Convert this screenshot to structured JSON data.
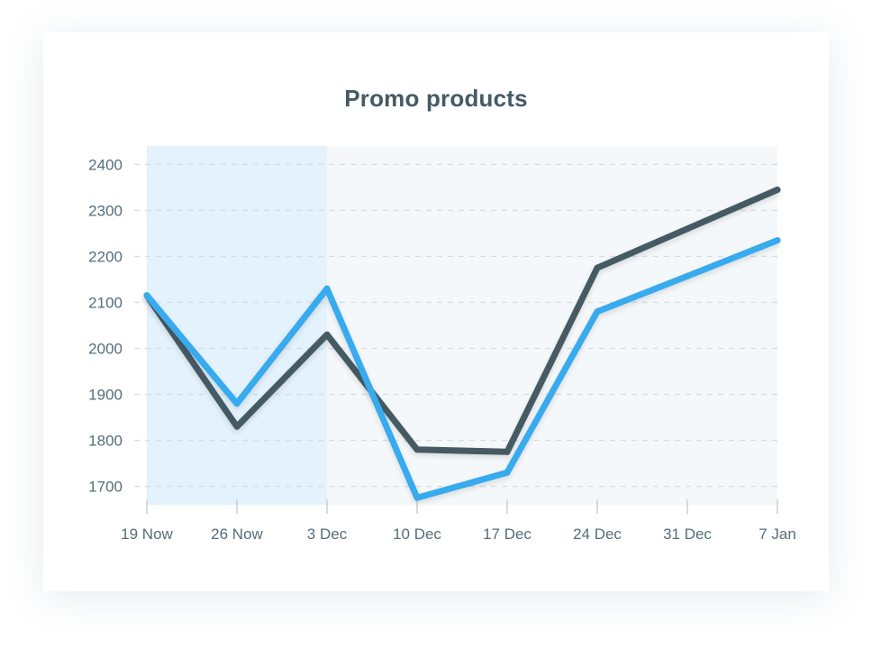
{
  "chart_data": {
    "type": "line",
    "title": "Promo products",
    "xlabel": "",
    "ylabel": "",
    "categories": [
      "19 Now",
      "26 Now",
      "3 Dec",
      "10 Dec",
      "17 Dec",
      "24 Dec",
      "31 Dec",
      "7 Jan"
    ],
    "yticks": [
      1700,
      1800,
      1900,
      2000,
      2100,
      2200,
      2300,
      2400
    ],
    "ylim": [
      1660,
      2440
    ],
    "grid": true,
    "highlight_range": [
      "19 Now",
      "3 Dec"
    ],
    "series": [
      {
        "color": "#455a64",
        "values": [
          2115,
          1830,
          2030,
          1780,
          1775,
          2175,
          2260,
          2345
        ]
      },
      {
        "color": "#37aaee",
        "values": [
          2115,
          1880,
          2130,
          1675,
          1730,
          2080,
          2157,
          2235
        ]
      }
    ],
    "colors": {
      "plot_background": "#f5f8fa",
      "highlight_band": "#e3f2fc",
      "grid": "#d6dde3",
      "axis": "#c5ced6",
      "title": "#455a64",
      "tick_text": "#546e7a"
    }
  }
}
